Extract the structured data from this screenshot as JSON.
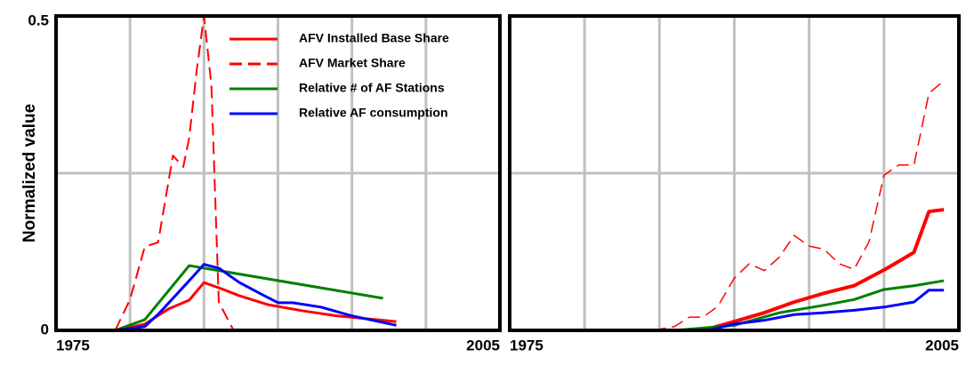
{
  "chart_data": [
    {
      "type": "line",
      "y_label": "Normalized value",
      "xlim": [
        1975,
        2005
      ],
      "xticks": [
        1975,
        2005
      ],
      "xgrid": [
        1980,
        1985,
        1990,
        1995,
        2000
      ],
      "ylim": [
        0,
        0.5
      ],
      "yticks": [
        0,
        0.5
      ],
      "ygrid": [
        0.25
      ],
      "grid": true,
      "legend": "top-right",
      "series": [
        {
          "name": "AFV Installed Base Share",
          "color": "#ff0000",
          "dash": false,
          "line_width": 3,
          "x": [
            1979,
            1981,
            1982.6,
            1984,
            1985,
            1986.2,
            1987.4,
            1989.3,
            1991.7,
            1994,
            1998
          ],
          "values": [
            0,
            0.01,
            0.034,
            0.048,
            0.076,
            0.066,
            0.055,
            0.041,
            0.031,
            0.023,
            0.014
          ]
        },
        {
          "name": "AFV Market Share",
          "color": "#ff0000",
          "dash": true,
          "line_width": 2,
          "x": [
            1979,
            1980,
            1981,
            1981.9,
            1982.9,
            1983.6,
            1984,
            1984.5,
            1985,
            1985.5,
            1986,
            1987
          ],
          "values": [
            0,
            0.049,
            0.133,
            0.14,
            0.278,
            0.26,
            0.306,
            0.412,
            0.5,
            0.39,
            0.045,
            0
          ]
        },
        {
          "name": "Relative # of AF Stations",
          "color": "#008000",
          "dash": false,
          "line_width": 3,
          "x": [
            1979,
            1981,
            1984,
            1985,
            1997.1
          ],
          "values": [
            0,
            0.017,
            0.103,
            0.099,
            0.051
          ]
        },
        {
          "name": "Relative AF consumption",
          "color": "#0000ff",
          "dash": false,
          "line_width": 3,
          "x": [
            1979,
            1981,
            1982,
            1984,
            1985,
            1986,
            1987.4,
            1989,
            1990,
            1991,
            1992.9,
            1995,
            1998
          ],
          "values": [
            0,
            0.006,
            0.028,
            0.079,
            0.105,
            0.099,
            0.076,
            0.056,
            0.044,
            0.044,
            0.037,
            0.023,
            0.008
          ]
        }
      ]
    },
    {
      "type": "line",
      "xlim": [
        1975,
        2005
      ],
      "xticks": [
        1975,
        2005
      ],
      "xgrid": [
        1980,
        1985,
        1990,
        1995,
        2000
      ],
      "ylim": [
        0,
        0.5
      ],
      "ygrid": [
        0.25
      ],
      "grid": true,
      "series": [
        {
          "color": "#ff0000",
          "dash": true,
          "line_width": 1.5,
          "x": [
            1984.6,
            1986,
            1987,
            1987.9,
            1988.9,
            1990,
            1991,
            1992,
            1993,
            1994,
            1995,
            1996,
            1997,
            1998,
            1999,
            2000,
            2001,
            2002,
            2003,
            2004
          ],
          "values": [
            0,
            0.006,
            0.021,
            0.021,
            0.038,
            0.083,
            0.106,
            0.095,
            0.116,
            0.151,
            0.134,
            0.129,
            0.106,
            0.097,
            0.141,
            0.247,
            0.263,
            0.263,
            0.377,
            0.397
          ]
        },
        {
          "color": "#ff0000",
          "dash": false,
          "line_width": 4,
          "x": [
            1987.9,
            1990,
            1992,
            1994,
            1996,
            1998,
            2000,
            2002,
            2003,
            2004
          ],
          "values": [
            0,
            0.014,
            0.028,
            0.045,
            0.059,
            0.071,
            0.096,
            0.124,
            0.189,
            0.192
          ]
        },
        {
          "color": "#008000",
          "dash": false,
          "line_width": 3,
          "x": [
            1986.1,
            1990,
            1993,
            1996,
            1998,
            2000,
            2002,
            2004
          ],
          "values": [
            0,
            0.008,
            0.028,
            0.04,
            0.049,
            0.065,
            0.071,
            0.079
          ]
        },
        {
          "color": "#0000ff",
          "dash": false,
          "line_width": 3,
          "x": [
            1988.2,
            1990,
            1992,
            1994,
            1996,
            1998,
            2000,
            2002,
            2003,
            2004
          ],
          "values": [
            0,
            0.01,
            0.016,
            0.025,
            0.028,
            0.032,
            0.037,
            0.045,
            0.064,
            0.064
          ]
        }
      ]
    }
  ]
}
